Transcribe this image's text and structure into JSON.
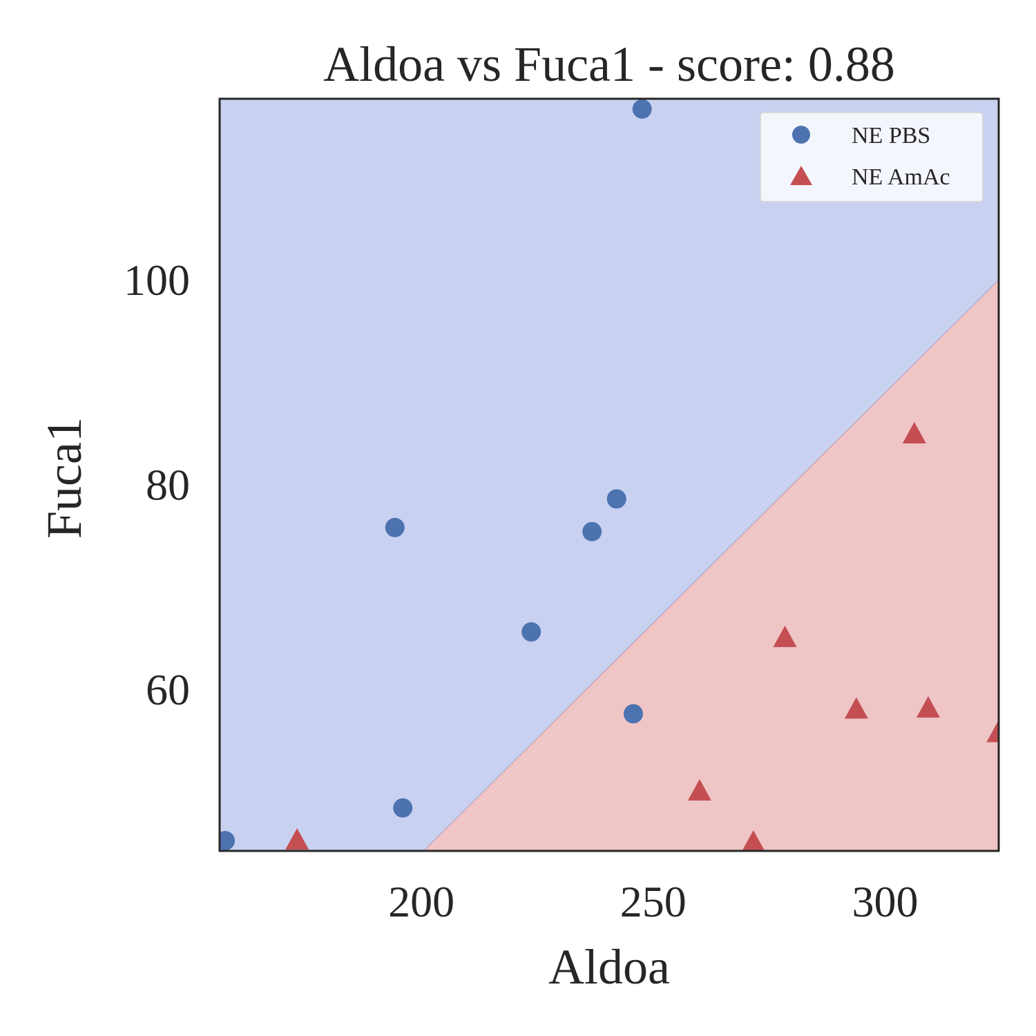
{
  "chart_data": {
    "type": "scatter",
    "title": "Aldoa vs Fuca1 - score: 0.88",
    "xlabel": "Aldoa",
    "ylabel": "Fuca1",
    "xlim": [
      156.5,
      324.5
    ],
    "ylim": [
      44.2,
      117.7
    ],
    "xticks": [
      200,
      250,
      300
    ],
    "yticks": [
      60,
      80,
      100
    ],
    "grid": false,
    "legend_position": "top-right",
    "decision_boundary": {
      "points": [
        [
          200.5,
          44.2
        ],
        [
          324.5,
          100.0
        ]
      ],
      "region_colors": {
        "NE PBS": "#c9d1f1",
        "NE AmAc": "#efc5c6"
      },
      "boundary_color": "#b49cb4"
    },
    "series": [
      {
        "name": "NE PBS",
        "marker": "circle",
        "color": "#4c72b0",
        "points": [
          [
            157.7,
            45.2
          ],
          [
            194.3,
            75.8
          ],
          [
            196.0,
            48.4
          ],
          [
            223.7,
            65.6
          ],
          [
            236.8,
            75.4
          ],
          [
            242.1,
            78.6
          ],
          [
            245.7,
            57.6
          ],
          [
            247.6,
            116.7
          ]
        ]
      },
      {
        "name": "NE AmAc",
        "marker": "triangle",
        "color": "#c44e52",
        "points": [
          [
            173.2,
            45.2
          ],
          [
            260.0,
            50.0
          ],
          [
            271.6,
            45.0
          ],
          [
            278.4,
            65.0
          ],
          [
            293.8,
            58.0
          ],
          [
            306.3,
            84.9
          ],
          [
            309.3,
            58.1
          ],
          [
            324.4,
            55.7
          ]
        ]
      }
    ]
  }
}
